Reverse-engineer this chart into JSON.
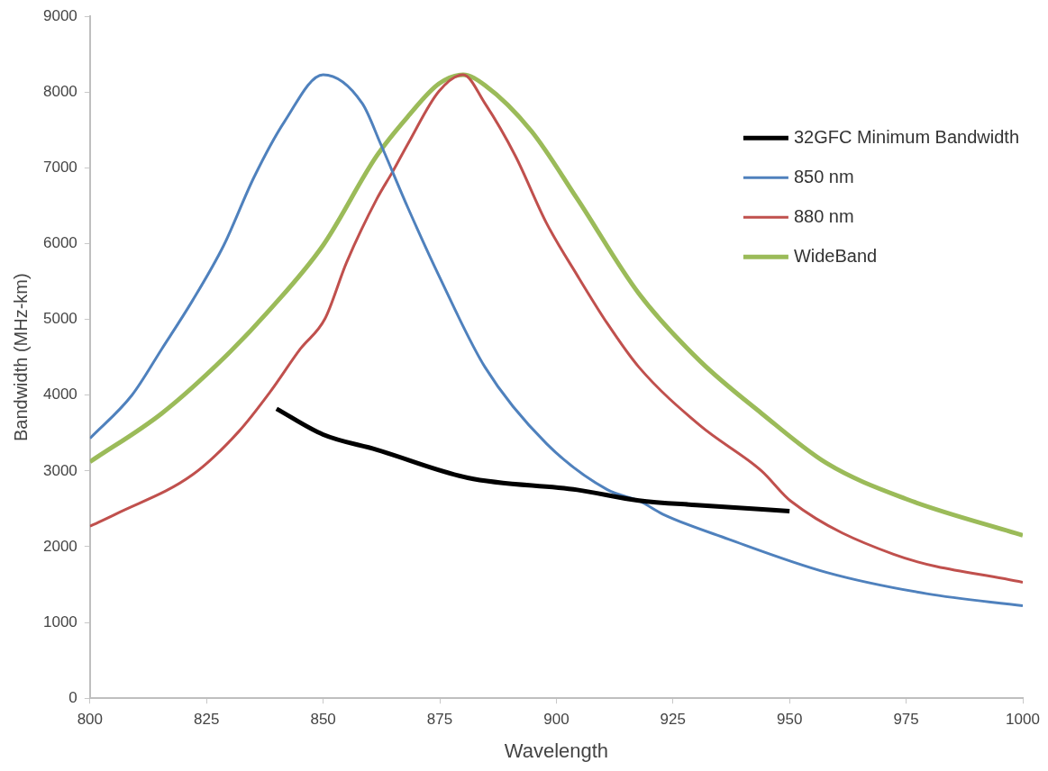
{
  "chart_data": {
    "type": "line",
    "xlabel": "Wavelength",
    "ylabel": "Bandwidth (MHz-km)",
    "xlim": [
      800,
      1000
    ],
    "xticks": [
      800,
      825,
      850,
      875,
      900,
      925,
      950,
      975,
      1000
    ],
    "ylim": [
      0,
      9000
    ],
    "yticks": [
      0,
      1000,
      2000,
      3000,
      4000,
      5000,
      6000,
      7000,
      8000,
      9000
    ],
    "grid": false,
    "legend": "top right",
    "marker": "none",
    "line_style": "solid",
    "series": [
      {
        "name": "32GFC Minimum Bandwidth",
        "color": "#000000",
        "x": [
          840,
          850,
          861.5,
          881,
          904.5,
          917.7,
          930,
          950
        ],
        "values": [
          3820,
          3480,
          3280,
          2910,
          2750,
          2610,
          2550,
          2470
        ]
      },
      {
        "name": "850 nm",
        "color": "#4f81bd",
        "x": [
          800,
          809,
          815.4,
          822,
          828.7,
          835.2,
          841.7,
          850,
          858.4,
          862.3,
          868.2,
          874.8,
          884.7,
          897.9,
          911,
          917.9,
          922.8,
          936.9,
          958,
          979.4,
          1000
        ],
        "values": [
          3430,
          4000,
          4610,
          5250,
          5980,
          6880,
          7610,
          8230,
          7850,
          7320,
          6470,
          5580,
          4370,
          3360,
          2750,
          2600,
          2430,
          2100,
          1660,
          1380,
          1220
        ]
      },
      {
        "name": "880 nm",
        "color": "#c0504d",
        "x": [
          800,
          805.5,
          822,
          831.9,
          838.6,
          845.1,
          850.4,
          855,
          861.5,
          864.9,
          868.2,
          874.8,
          880,
          884.7,
          891.2,
          897.9,
          904.5,
          911,
          917.7,
          930.8,
          944,
          950.3,
          972.3,
          1000
        ],
        "values": [
          2270,
          2430,
          2950,
          3520,
          4040,
          4610,
          5010,
          5750,
          6590,
          6950,
          7320,
          8010,
          8230,
          7850,
          7160,
          6270,
          5580,
          4940,
          4370,
          3600,
          3000,
          2600,
          1900,
          1530
        ]
      },
      {
        "name": "WideBand",
        "color": "#9bbb59",
        "x": [
          800,
          815.4,
          828.7,
          838.6,
          850,
          861.5,
          868.2,
          874.8,
          880,
          884.7,
          894.6,
          904.5,
          917.7,
          930.8,
          944,
          958,
          975,
          1000
        ],
        "values": [
          3120,
          3760,
          4490,
          5130,
          5980,
          7160,
          7680,
          8110,
          8230,
          8090,
          7490,
          6590,
          5340,
          4450,
          3760,
          3100,
          2630,
          2150
        ]
      }
    ]
  }
}
